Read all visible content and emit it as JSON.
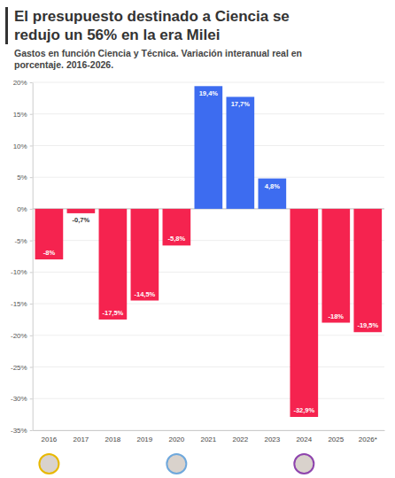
{
  "chart_data": {
    "type": "bar",
    "title": "El presupuesto destinado a Ciencia se redujo un 56% en la era Milei",
    "subtitle": "Gastos en función Ciencia y Técnica. Variación interanual real en porcentaje. 2016-2026.",
    "categories": [
      "2016",
      "2017",
      "2018",
      "2019",
      "2020",
      "2021",
      "2022",
      "2023",
      "2024",
      "2025",
      "2026*"
    ],
    "values": [
      -8,
      -0.7,
      -17.5,
      -14.5,
      -5.8,
      19.4,
      17.7,
      4.8,
      -32.9,
      -18,
      -19.5
    ],
    "value_labels": [
      "-8%",
      "-0,7%",
      "-17,5%",
      "-14,5%",
      "-5,8%",
      "19,4%",
      "17,7%",
      "4,8%",
      "-32,9%",
      "-18%",
      "-19,5%"
    ],
    "colors": [
      "#f5234f",
      "#f5234f",
      "#f5234f",
      "#f5234f",
      "#f5234f",
      "#3d6cf0",
      "#3d6cf0",
      "#3d6cf0",
      "#f5234f",
      "#f5234f",
      "#f5234f"
    ],
    "ylim": [
      -35,
      20
    ],
    "yticks": [
      {
        "value": -35,
        "label": "-35%"
      },
      {
        "value": -30,
        "label": "-30%"
      },
      {
        "value": -25,
        "label": "-25%"
      },
      {
        "value": -20,
        "label": "-20%"
      },
      {
        "value": -15,
        "label": "-15%"
      },
      {
        "value": -10,
        "label": "-10%"
      },
      {
        "value": -5,
        "label": "-5%"
      },
      {
        "value": 0,
        "label": "0%"
      },
      {
        "value": 5,
        "label": "5%"
      },
      {
        "value": 10,
        "label": "10%"
      },
      {
        "value": 15,
        "label": "15%"
      },
      {
        "value": 20,
        "label": "20%"
      }
    ],
    "grid": true,
    "data_labels": true
  }
}
